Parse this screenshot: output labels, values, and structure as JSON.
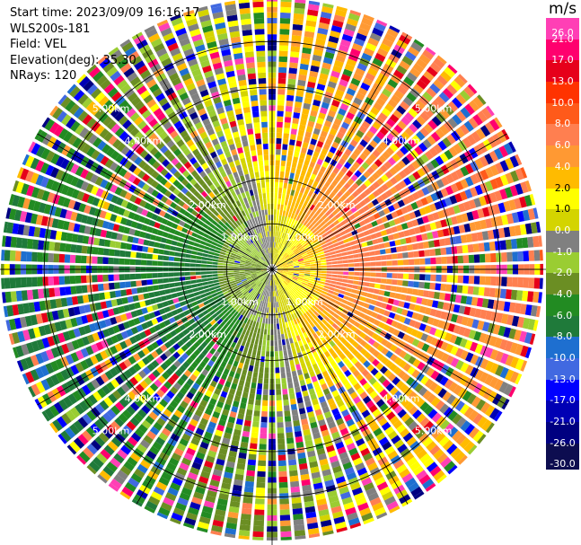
{
  "meta": {
    "start_time": "Start time: 2023/09/09 16:16:17",
    "instrument": "WLS200s-181",
    "field": "Field: VEL",
    "elevation": "Elevation(deg): 35.30",
    "nrays": "NRays: 120"
  },
  "chart_data": {
    "type": "polar-ppi",
    "title": "",
    "field": "VEL",
    "units": "m/s",
    "n_rays": 120,
    "elevation_deg": 35.3,
    "range_rings_km": [
      "1.00km",
      "2.00km",
      "4.00km",
      "5.00km"
    ],
    "range_ring_values_km": [
      1,
      2,
      4,
      5
    ],
    "max_range_km": 5.95,
    "spoke_interval_deg": 30,
    "colorbar": {
      "label": "m/s",
      "tick_labels": [
        "26.0",
        "21.0",
        "17.0",
        "13.0",
        "10.0",
        "8.0",
        "6.0",
        "4.0",
        "2.0",
        "1.0",
        "0.0",
        "-1.0",
        "-2.0",
        "-4.0",
        "-6.0",
        "-8.0",
        "-10.0",
        "-13.0",
        "-17.0",
        "-21.0",
        "-26.0",
        "-30.0"
      ],
      "bins": [
        {
          "color": "#ff3fb5"
        },
        {
          "color": "#ff006e"
        },
        {
          "color": "#e6001a"
        },
        {
          "color": "#ff3300"
        },
        {
          "color": "#ff5a1a"
        },
        {
          "color": "#ff7f50"
        },
        {
          "color": "#ff9933"
        },
        {
          "color": "#ffbb00"
        },
        {
          "color": "#ffff00"
        },
        {
          "color": "#d4d400"
        },
        {
          "color": "#808080"
        },
        {
          "color": "#9acd32"
        },
        {
          "color": "#6b8e23"
        },
        {
          "color": "#228b22"
        },
        {
          "color": "#1f7a3a"
        },
        {
          "color": "#1e6fd0"
        },
        {
          "color": "#4169e1"
        },
        {
          "color": "#0000ff"
        },
        {
          "color": "#0000b4"
        },
        {
          "color": "#000080"
        },
        {
          "color": "#0d0d50"
        }
      ]
    },
    "field_pattern": {
      "noise_palette": [
        "#ff3fb5",
        "#ff006e",
        "#e6001a",
        "#0000ff",
        "#0000b4",
        "#1e6fd0",
        "#228b22",
        "#ffbb00",
        "#ffff00",
        "#808080",
        "#9acd32",
        "#ff7f50",
        "#000080",
        "#ff9933",
        "#4169e1",
        "#6b8e23"
      ],
      "description": "wind from the south-west: positive (toward radar) velocities in the east, negative in the west"
    }
  }
}
